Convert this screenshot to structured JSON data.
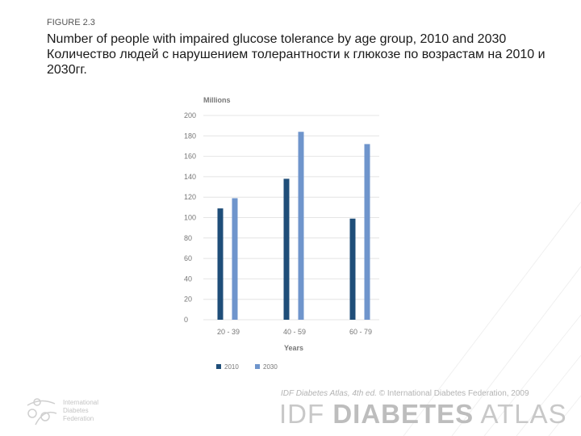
{
  "figure_label": "FIGURE 2.3",
  "title_en": "Number of people with impaired glucose tolerance by age group, 2010 and 2030",
  "title_ru": "Количество людей с нарушением толерантности к глюкозе по возрастам на 2010 и 2030гг.",
  "footer": {
    "credit_italic": "IDF Diabetes Atlas, 4th ed.",
    "credit_rest": " © International Diabetes Federation, 2009",
    "brand_light": "IDF ",
    "brand_bold": "DIABETES",
    "brand_end": " ATLAS",
    "org_lines": [
      "International",
      "Diabetes",
      "Federation"
    ]
  },
  "colors": {
    "series_2010": "#1f4e79",
    "series_2030": "#6f95cc",
    "grid": "#e4e4e4",
    "axis_text": "#777777"
  },
  "chart_data": {
    "type": "bar",
    "ylabel": "Millions",
    "xlabel": "Years",
    "ylim": [
      0,
      200
    ],
    "yticks": [
      0,
      20,
      40,
      60,
      80,
      100,
      120,
      140,
      160,
      180,
      200
    ],
    "categories": [
      "20 - 39",
      "40 - 59",
      "60 - 79"
    ],
    "series": [
      {
        "name": "2010",
        "values": [
          109,
          138,
          99
        ]
      },
      {
        "name": "2030",
        "values": [
          119,
          184,
          172
        ]
      }
    ],
    "grid": true,
    "legend_position": "bottom-left"
  }
}
